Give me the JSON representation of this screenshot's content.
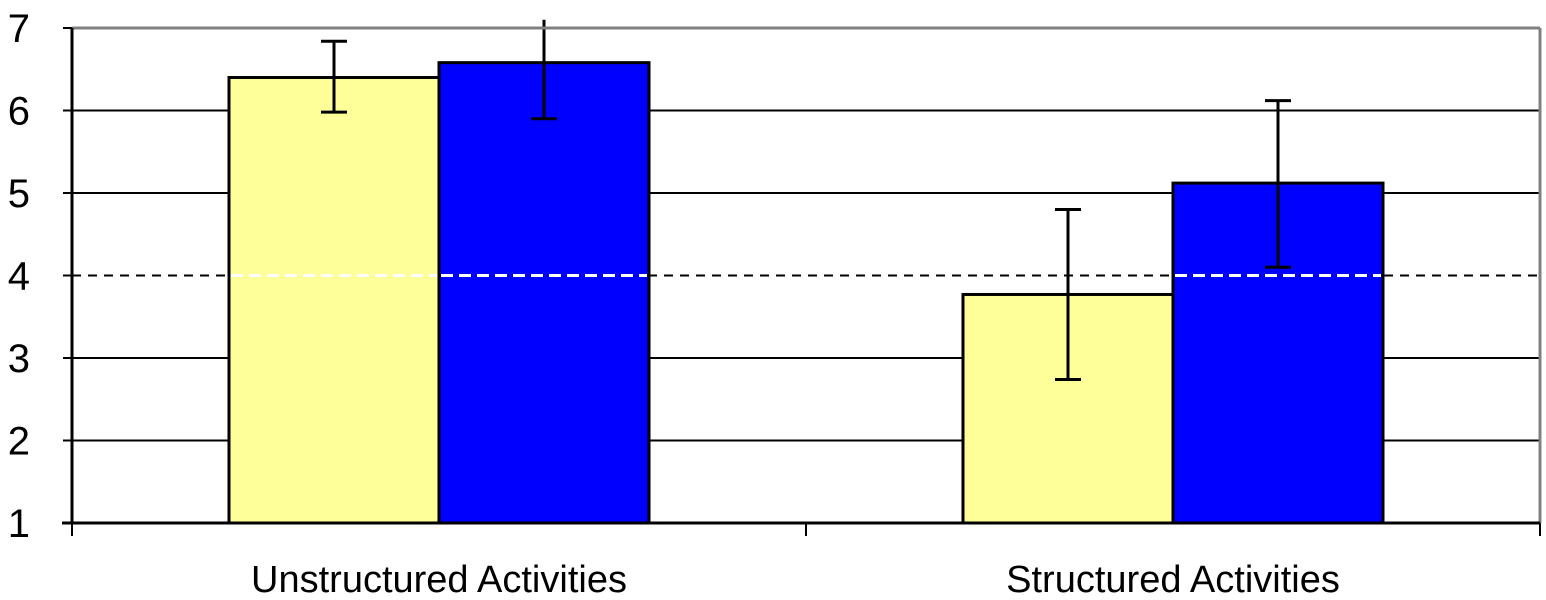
{
  "chart_data": {
    "type": "bar",
    "categories": [
      "Unstructured Activities",
      "Structured Activities"
    ],
    "series": [
      {
        "color": "#ffff99",
        "values": [
          6.4,
          3.77
        ],
        "error_low": [
          5.98,
          2.74
        ],
        "error_high": [
          6.84,
          4.8
        ]
      },
      {
        "color": "#0000ff",
        "values": [
          6.58,
          5.12
        ],
        "error_low": [
          5.9,
          4.1
        ],
        "error_high": [
          7.1,
          6.12
        ]
      }
    ],
    "ylim": [
      1,
      7
    ],
    "yticks": [
      "1",
      "2",
      "3",
      "4",
      "5",
      "6",
      "7"
    ],
    "reference_line": 4,
    "grid": true,
    "legend": "none"
  },
  "colors": {
    "gridline": "#000000",
    "plot_border": "#808080",
    "bar_outline": "#000000",
    "reference_line_dark": "#000000",
    "reference_line_light": "#ffffff"
  }
}
